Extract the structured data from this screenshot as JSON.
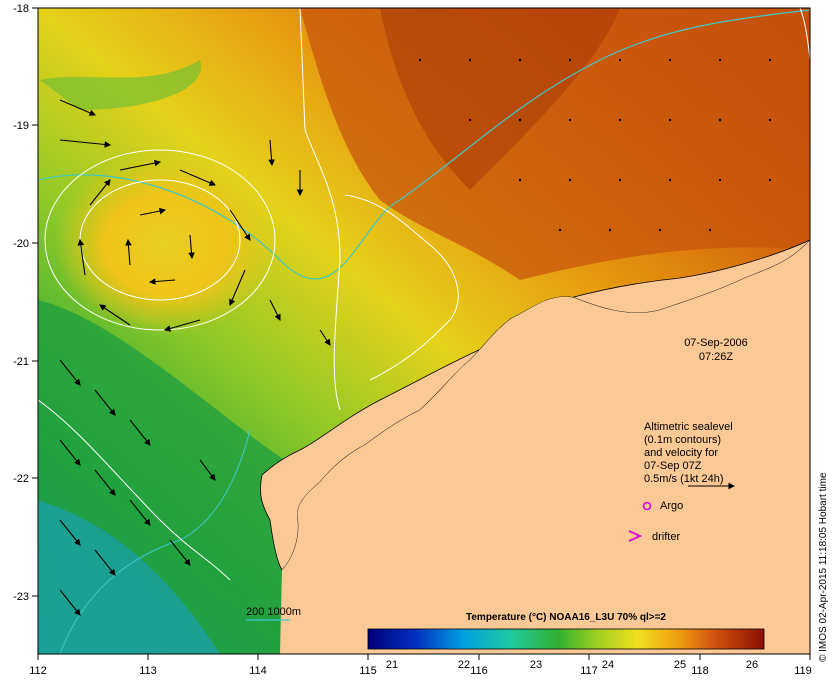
{
  "map": {
    "lon_ticks": [
      "112",
      "113",
      "114",
      "115",
      "116",
      "117",
      "118",
      "119"
    ],
    "lat_ticks": [
      "-18",
      "-19",
      "-20",
      "-21",
      "-22",
      "-23"
    ],
    "date_line": "07-Sep-2006",
    "time_line": "07:26Z",
    "legend": {
      "line1": "Altimetric sealevel",
      "line2": "(0.1m contours)",
      "line3": "and velocity for",
      "line4": "07-Sep 07Z",
      "line5": "0.5m/s (1kt 24h)",
      "argo_label": "Argo",
      "drifter_label": "drifter"
    },
    "isobath_label": "200  1000m",
    "colorbar": {
      "title": "Temperature (°C) NOAA16_L3U 70% ql>=2",
      "ticks": [
        "21",
        "22",
        "23",
        "24",
        "25",
        "26"
      ]
    },
    "credit": "© IMOS 02-Apr-2015 11:18:05 Hobart time",
    "colors": {
      "land": "#fbc996",
      "warm": "#c84a0a",
      "cool": "#2aa840",
      "isobath": "#3fc8c8"
    }
  }
}
